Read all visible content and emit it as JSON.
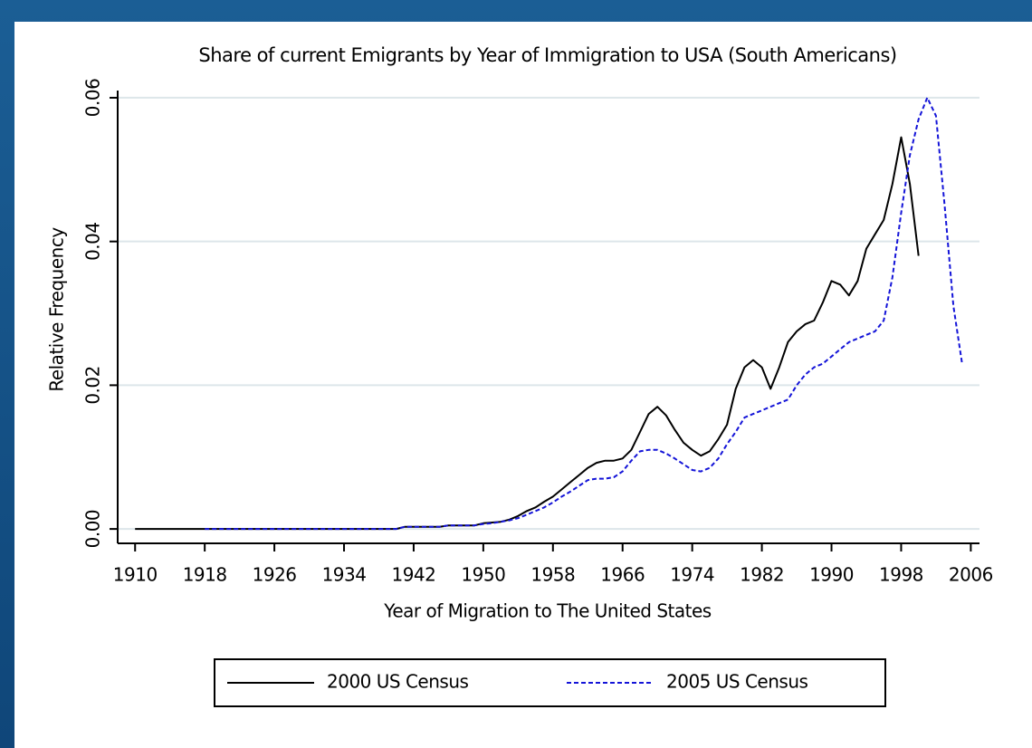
{
  "chart_data": {
    "type": "line",
    "title": "Share of current Emigrants by Year of Immigration to USA (South Americans)",
    "x_label": "Year of Migration to The United States",
    "y_label": "Relative Frequency",
    "x": [
      1910,
      1911,
      1912,
      1913,
      1914,
      1915,
      1916,
      1917,
      1918,
      1919,
      1920,
      1921,
      1922,
      1923,
      1924,
      1925,
      1926,
      1927,
      1928,
      1929,
      1930,
      1931,
      1932,
      1933,
      1934,
      1935,
      1936,
      1937,
      1938,
      1939,
      1940,
      1941,
      1942,
      1943,
      1944,
      1945,
      1946,
      1947,
      1948,
      1949,
      1950,
      1951,
      1952,
      1953,
      1954,
      1955,
      1956,
      1957,
      1958,
      1959,
      1960,
      1961,
      1962,
      1963,
      1964,
      1965,
      1966,
      1967,
      1968,
      1969,
      1970,
      1971,
      1972,
      1973,
      1974,
      1975,
      1976,
      1977,
      1978,
      1979,
      1980,
      1981,
      1982,
      1983,
      1984,
      1985,
      1986,
      1987,
      1988,
      1989,
      1990,
      1991,
      1992,
      1993,
      1994,
      1995,
      1996,
      1997,
      1998,
      1999,
      2000,
      2001,
      2002,
      2003,
      2004,
      2005
    ],
    "series": [
      {
        "name": "2000 US Census",
        "color": "#000000",
        "dash": false,
        "values": [
          0,
          0,
          0,
          0,
          0,
          0,
          0,
          0,
          0,
          0,
          0,
          0,
          0,
          0,
          0,
          0,
          0,
          0,
          0,
          0,
          0,
          0,
          0,
          0,
          0,
          0,
          0,
          0,
          0,
          0,
          0,
          0.0003,
          0.0003,
          0.0003,
          0.0003,
          0.0003,
          0.0005,
          0.0005,
          0.0005,
          0.0005,
          0.0008,
          0.0009,
          0.001,
          0.0013,
          0.0018,
          0.0025,
          0.003,
          0.0038,
          0.0045,
          0.0055,
          0.0065,
          0.0075,
          0.0085,
          0.0092,
          0.0095,
          0.0095,
          0.0098,
          0.011,
          0.0135,
          0.016,
          0.017,
          0.0158,
          0.0138,
          0.012,
          0.011,
          0.0102,
          0.0108,
          0.0125,
          0.0145,
          0.0195,
          0.0225,
          0.0235,
          0.0225,
          0.0195,
          0.0225,
          0.026,
          0.0275,
          0.0285,
          0.029,
          0.0315,
          0.0345,
          0.034,
          0.0325,
          0.0345,
          0.039,
          0.041,
          0.043,
          0.048,
          0.0545,
          0.048,
          0.038,
          null,
          null,
          null,
          null,
          null
        ]
      },
      {
        "name": "2005 US Census",
        "color": "#1414d8",
        "dash": true,
        "values": [
          null,
          null,
          null,
          null,
          null,
          null,
          null,
          null,
          0,
          0,
          0,
          0,
          0,
          0,
          0,
          0,
          0,
          0,
          0,
          0,
          0,
          0,
          0,
          0,
          0,
          0,
          0,
          0,
          0,
          0,
          0,
          0.0003,
          0.0003,
          0.0003,
          0.0003,
          0.0003,
          0.0005,
          0.0005,
          0.0005,
          0.0005,
          0.0007,
          0.0008,
          0.001,
          0.0012,
          0.0015,
          0.002,
          0.0025,
          0.003,
          0.0037,
          0.0045,
          0.0052,
          0.006,
          0.0068,
          0.007,
          0.007,
          0.0072,
          0.008,
          0.0095,
          0.0108,
          0.011,
          0.011,
          0.0105,
          0.0098,
          0.009,
          0.0082,
          0.008,
          0.0085,
          0.0098,
          0.0118,
          0.0135,
          0.0155,
          0.016,
          0.0165,
          0.017,
          0.0175,
          0.018,
          0.02,
          0.0215,
          0.0225,
          0.023,
          0.024,
          0.025,
          0.026,
          0.0265,
          0.027,
          0.0275,
          0.029,
          0.035,
          0.044,
          0.052,
          0.057,
          0.06,
          0.0575,
          0.045,
          0.031,
          0.023
        ]
      }
    ],
    "xlim": [
      1908,
      2007
    ],
    "xticks": [
      1910,
      1918,
      1926,
      1934,
      1942,
      1950,
      1958,
      1966,
      1974,
      1982,
      1990,
      1998,
      2006
    ],
    "ylim": [
      -0.002,
      0.061
    ],
    "yticks": [
      {
        "value": 0,
        "label": "0.00"
      },
      {
        "value": 0.02,
        "label": "0.02"
      },
      {
        "value": 0.04,
        "label": "0.04"
      },
      {
        "value": 0.06,
        "label": "0.06"
      }
    ],
    "grid": true,
    "legend": "bottom"
  }
}
